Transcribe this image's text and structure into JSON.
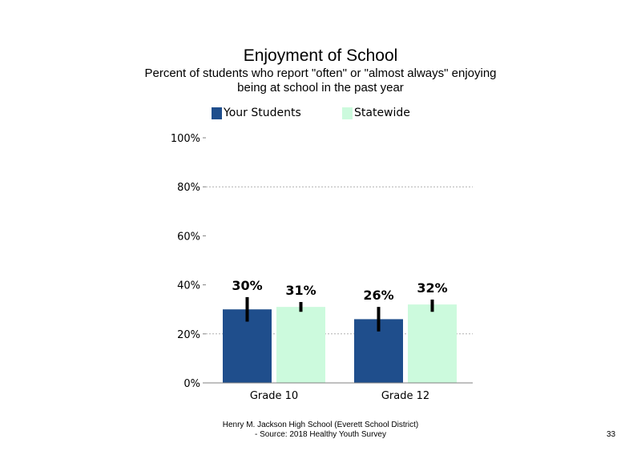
{
  "title": "Enjoyment  of School",
  "subtitle_line1": "Percent of students  who report \"often\" or \"almost  always\" enjoying",
  "subtitle_line2": "being at school in the past year",
  "footer_line1": "Henry M.  Jackson High  School (Everett School District)",
  "footer_line2": "- Source: 2018 Healthy  Youth Survey",
  "page_number": "33",
  "chart_data": {
    "type": "bar",
    "categories": [
      "Grade 10",
      "Grade 12"
    ],
    "series": [
      {
        "name": "Your Students",
        "color": "#1f4e8c",
        "values": [
          30,
          26
        ],
        "labels": [
          "30%",
          "26%"
        ],
        "error_low": [
          25,
          21
        ],
        "error_high": [
          35,
          31
        ]
      },
      {
        "name": "Statewide",
        "color": "#ccfadd",
        "values": [
          31,
          32
        ],
        "labels": [
          "31%",
          "32%"
        ],
        "error_low": [
          29,
          29
        ],
        "error_high": [
          33,
          34
        ]
      }
    ],
    "ylim": [
      0,
      100
    ],
    "yticks": [
      0,
      20,
      40,
      60,
      80,
      100
    ],
    "ytick_labels": [
      "0%",
      "20%",
      "40%",
      "60%",
      "80%",
      "100%"
    ],
    "gridlines": [
      20,
      80
    ],
    "legend_position": "top"
  }
}
